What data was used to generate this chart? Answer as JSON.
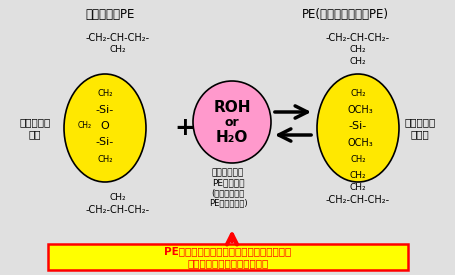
{
  "bg_color": "#e0e0e0",
  "title_left": "シラン架橋PE",
  "title_right": "PE(シラングラフトPE)",
  "label_left": "シロキサン\n結合",
  "label_right": "アルコキシ\nシラノ",
  "ellipse_left_color": "#FFE800",
  "ellipse_right_color": "#FFE800",
  "ellipse_center_color": "#FF99CC",
  "chem_formula": "-CH₂-CH-CH₂-",
  "ch2": "CH₂",
  "supercritical_text": "超臨界状態で\nPEに溶ける",
  "normal_text": "(常温常圧では\nPEに溶けない)",
  "bottom_box_text": "PE等の有機物に対する溶解度が、常温常圧\nよりも高い超臨界流体の利用",
  "bottom_box_color": "#FFFF00",
  "bottom_box_border": "#FF0000",
  "bottom_text_color": "#FF0000",
  "arrow_up_color": "#FF0000",
  "arrow_color": "#000000"
}
